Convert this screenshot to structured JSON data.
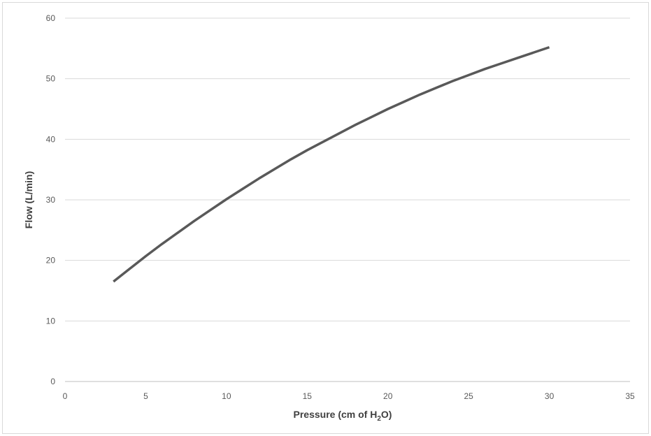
{
  "chart_data": {
    "type": "line",
    "title": "",
    "xlabel": "Pressure (cm of H₂O)",
    "xlabel_parts": {
      "prefix": "Pressure (cm of H",
      "sub": "2",
      "suffix": "O)"
    },
    "ylabel": "Flow (L/min)",
    "xlim": [
      0,
      35
    ],
    "ylim": [
      0,
      60
    ],
    "xticks": [
      0,
      5,
      10,
      15,
      20,
      25,
      30,
      35
    ],
    "yticks": [
      0,
      10,
      20,
      30,
      40,
      50,
      60
    ],
    "grid": "horizontal",
    "legend": "none",
    "series": [
      {
        "color": "#595959",
        "x": [
          3,
          4,
          5,
          6,
          7,
          8,
          9,
          10,
          11,
          12,
          13,
          14,
          15,
          16,
          17,
          18,
          19,
          20,
          21,
          22,
          23,
          24,
          25,
          26,
          27,
          28,
          29,
          30
        ],
        "y": [
          16.5,
          18.6,
          20.7,
          22.7,
          24.6,
          26.5,
          28.3,
          30.1,
          31.8,
          33.5,
          35.1,
          36.7,
          38.2,
          39.6,
          41.0,
          42.4,
          43.7,
          45.0,
          46.2,
          47.4,
          48.5,
          49.6,
          50.6,
          51.6,
          52.5,
          53.4,
          54.3,
          55.2
        ]
      }
    ]
  }
}
